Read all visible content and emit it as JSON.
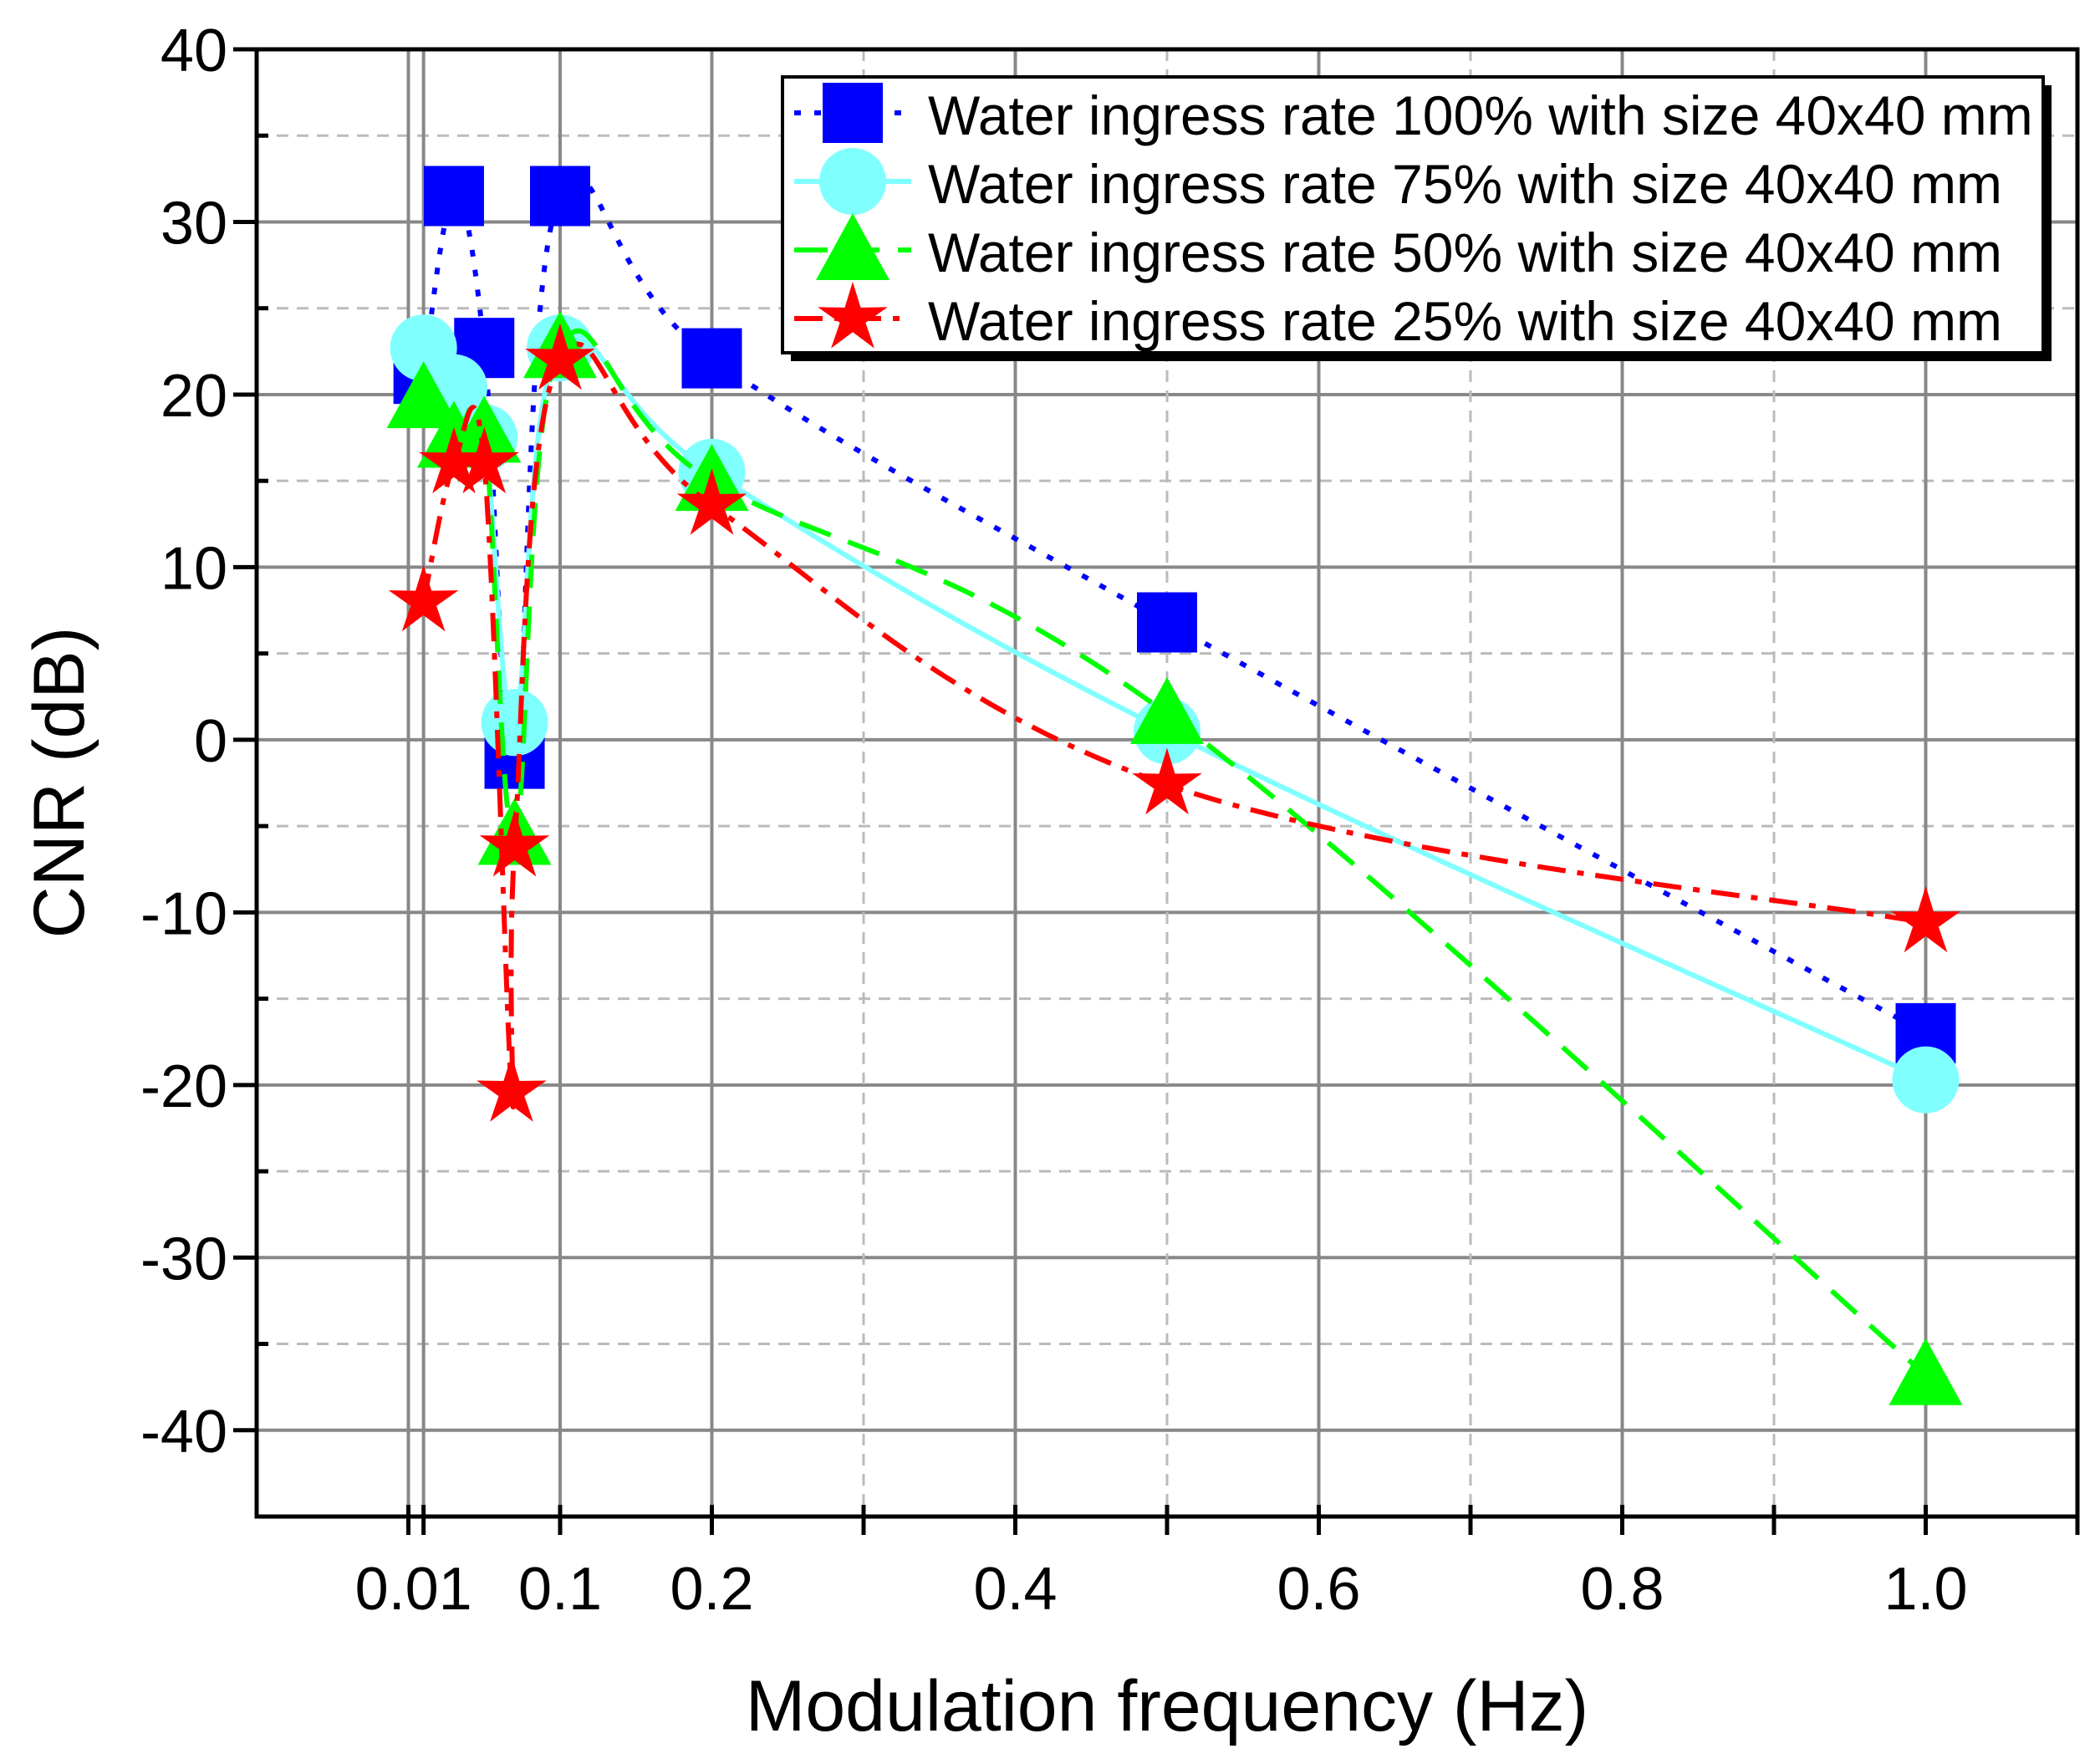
{
  "chart_data": {
    "type": "line",
    "xlabel": "Modulation frequency (Hz)",
    "ylabel": "CNR (dB)",
    "xlim": [
      -0.1,
      1.1
    ],
    "ylim": [
      -45,
      40
    ],
    "xticks": [
      {
        "v": 0.01,
        "label": "0.01"
      },
      {
        "v": 0.1,
        "label": "0.1"
      },
      {
        "v": 0.2,
        "label": "0.2"
      },
      {
        "v": 0.4,
        "label": "0.4"
      },
      {
        "v": 0.6,
        "label": "0.6"
      },
      {
        "v": 0.8,
        "label": "0.8"
      },
      {
        "v": 1.0,
        "label": "1.0"
      }
    ],
    "yticks": [
      40,
      30,
      20,
      10,
      0,
      -10,
      -20,
      -30,
      -40
    ],
    "ytick_labels": [
      "40",
      "30",
      "20",
      "10",
      "0",
      "-10",
      "-20",
      "-30",
      "-40"
    ],
    "grid": true,
    "legend_position": "top-right",
    "series": [
      {
        "name": "Water ingress rate 100% with size 40x40 mm",
        "color": "#0000ff",
        "marker": "square",
        "dash": "dot",
        "x": [
          0.01,
          0.03,
          0.05,
          0.07,
          0.1,
          0.2,
          0.5,
          1.0
        ],
        "y": [
          21.2,
          31.5,
          22.7,
          -1.1,
          31.5,
          22.1,
          6.8,
          -17.0
        ]
      },
      {
        "name": "Water ingress rate 75% with size 40x40 mm",
        "color": "#80ffff",
        "marker": "circle",
        "dash": "solid",
        "x": [
          0.01,
          0.03,
          0.05,
          0.07,
          0.1,
          0.2,
          0.5,
          1.0
        ],
        "y": [
          22.7,
          20.4,
          17.5,
          1.0,
          22.7,
          15.5,
          0.5,
          -19.7
        ]
      },
      {
        "name": "Water ingress rate 50% with size 40x40 mm",
        "color": "#00ff00",
        "marker": "triangle",
        "dash": "dash",
        "x": [
          0.01,
          0.03,
          0.05,
          0.07,
          0.1,
          0.2,
          0.5,
          1.0
        ],
        "y": [
          19.8,
          17.5,
          17.8,
          -5.5,
          22.7,
          15.0,
          1.5,
          -36.8
        ]
      },
      {
        "name": "Water ingress rate 25% with size 40x40 mm",
        "color": "#ff0000",
        "marker": "star",
        "dash": "dashdot",
        "x": [
          0.01,
          0.03,
          0.05,
          0.068,
          0.07,
          0.1,
          0.2,
          0.5,
          1.0
        ],
        "y": [
          8.0,
          16.0,
          16.0,
          -20.4,
          -6.2,
          22.0,
          13.6,
          -2.6,
          -10.6
        ]
      }
    ]
  }
}
